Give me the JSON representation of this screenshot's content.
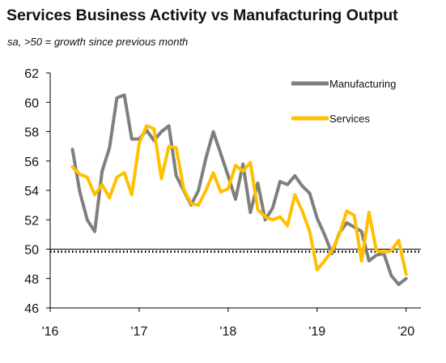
{
  "chart_data": {
    "type": "line",
    "title": "Services Business Activity vs Manufacturing Output",
    "subtitle": "sa, >50 = growth since previous month",
    "xlabel": "",
    "ylabel": "",
    "ylim": [
      46,
      62
    ],
    "yticks": [
      46,
      48,
      50,
      52,
      54,
      56,
      58,
      60,
      62
    ],
    "xlim": [
      "2016-01",
      "2020-03"
    ],
    "xticks": [
      {
        "label": "'16",
        "at": "2016-01"
      },
      {
        "label": "'17",
        "at": "2017-01"
      },
      {
        "label": "'18",
        "at": "2018-01"
      },
      {
        "label": "'19",
        "at": "2019-01"
      },
      {
        "label": "'20",
        "at": "2020-01"
      }
    ],
    "reference_line": {
      "y": 50,
      "style": "dotted"
    },
    "grid": false,
    "legend_position": "top-right",
    "x": [
      "2016-04",
      "2016-05",
      "2016-06",
      "2016-07",
      "2016-08",
      "2016-09",
      "2016-10",
      "2016-11",
      "2016-12",
      "2017-01",
      "2017-02",
      "2017-03",
      "2017-04",
      "2017-05",
      "2017-06",
      "2017-07",
      "2017-08",
      "2017-09",
      "2017-10",
      "2017-11",
      "2017-12",
      "2018-01",
      "2018-02",
      "2018-03",
      "2018-04",
      "2018-05",
      "2018-06",
      "2018-07",
      "2018-08",
      "2018-09",
      "2018-10",
      "2018-11",
      "2018-12",
      "2019-01",
      "2019-02",
      "2019-03",
      "2019-04",
      "2019-05",
      "2019-06",
      "2019-07",
      "2019-08",
      "2019-09",
      "2019-10",
      "2019-11",
      "2019-12",
      "2020-01",
      "2020-02"
    ],
    "series": [
      {
        "name": "Manufacturing",
        "color": "#7f7f7f",
        "values": [
          56.8,
          53.9,
          52.0,
          51.2,
          55.3,
          56.9,
          60.3,
          60.5,
          57.5,
          57.5,
          58.1,
          57.4,
          58.0,
          58.4,
          55.0,
          54.0,
          53.0,
          54.0,
          56.2,
          58.0,
          56.5,
          55.0,
          53.4,
          55.8,
          52.5,
          54.5,
          52.0,
          52.8,
          54.6,
          54.4,
          55.0,
          54.3,
          53.8,
          52.1,
          51.0,
          49.7,
          51.1,
          51.8,
          51.5,
          51.2,
          49.2,
          49.6,
          49.7,
          48.2,
          47.6,
          48.0,
          null
        ]
      },
      {
        "name": "Services",
        "color": "#ffc000",
        "values": [
          55.6,
          55.1,
          54.9,
          53.7,
          54.4,
          53.5,
          54.9,
          55.2,
          53.7,
          57.2,
          58.4,
          58.2,
          54.8,
          57.0,
          56.9,
          54.1,
          53.1,
          53.0,
          54.0,
          55.2,
          53.9,
          54.1,
          55.7,
          55.3,
          55.9,
          52.7,
          52.2,
          52.0,
          52.2,
          51.6,
          53.7,
          52.6,
          51.2,
          48.6,
          49.2,
          49.9,
          51.0,
          52.6,
          52.3,
          49.2,
          52.5,
          49.9,
          49.8,
          49.9,
          50.6,
          48.3,
          null
        ]
      }
    ]
  }
}
